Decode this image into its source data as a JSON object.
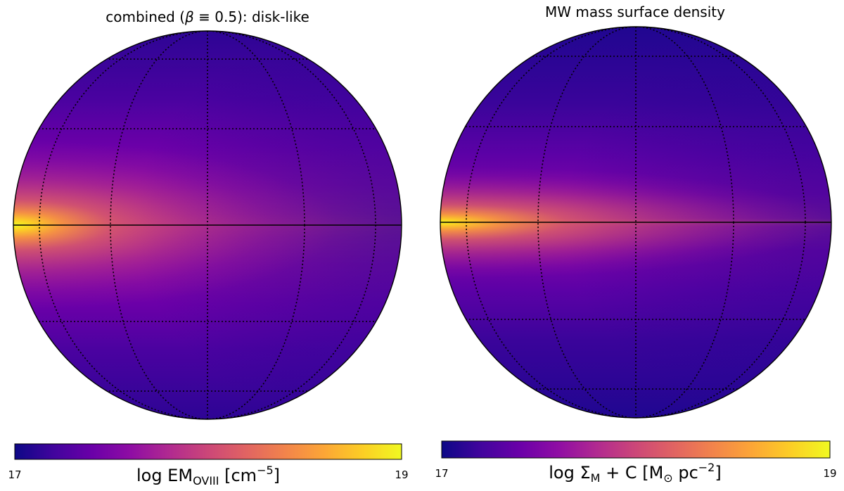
{
  "chart_data": [
    {
      "type": "heatmap",
      "projection": "orthographic",
      "title_parts": [
        "combined (",
        "β",
        " ≡ 0.5): disk-like"
      ],
      "colormap": "plasma",
      "colorbar": {
        "orientation": "horizontal",
        "vmin": 17,
        "vmax": 19,
        "tick_labels": [
          "17",
          "19"
        ],
        "label_parts": [
          "log EM",
          "OVIII",
          " [cm",
          "−5",
          "]"
        ]
      },
      "graticule": {
        "shown": true,
        "style": "dotted"
      },
      "equator_line": true
    },
    {
      "type": "heatmap",
      "projection": "orthographic",
      "title": "MW mass surface density",
      "colormap": "plasma",
      "colorbar": {
        "orientation": "horizontal",
        "vmin": 17,
        "vmax": 19,
        "tick_labels": [
          "17",
          "19"
        ],
        "label_parts": [
          "log Σ",
          "M",
          " + C [M",
          "⊙",
          " pc",
          "−2",
          "]"
        ]
      },
      "graticule": {
        "shown": true,
        "style": "dotted"
      },
      "equator_line": true
    }
  ]
}
